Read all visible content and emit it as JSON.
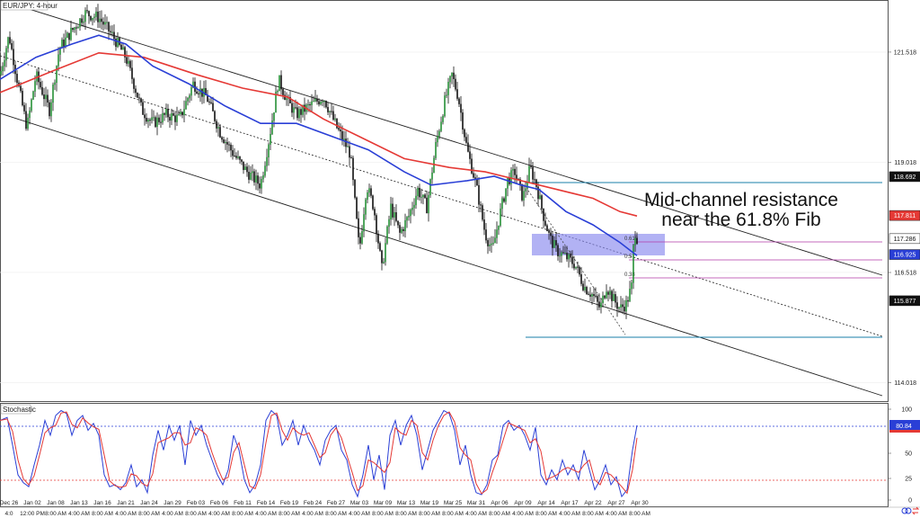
{
  "window": {
    "title": "EUR/JPY: 4-hour"
  },
  "chart_data": [
    {
      "type": "candlestick",
      "title": "EUR/JPY: 4-hour",
      "ylim": [
        113.6,
        122.7
      ],
      "y_ticks": [
        "121.518",
        "119.018",
        "116.518",
        "114.018"
      ],
      "price_tags": [
        {
          "label": "118.692",
          "kind": "level",
          "color": "#111111",
          "text_color": "#ffffff"
        },
        {
          "label": "117.811",
          "kind": "ma_red",
          "color": "#e53935",
          "text_color": "#ffffff"
        },
        {
          "label": "117.286",
          "kind": "last",
          "color": "#ffffff",
          "text_color": "#111111"
        },
        {
          "label": "116.925",
          "kind": "ma_blue",
          "color": "#2a3fd6",
          "text_color": "#ffffff"
        },
        {
          "label": "115.877",
          "kind": "level",
          "color": "#111111",
          "text_color": "#ffffff"
        }
      ],
      "x_labels": [
        "Dec 26",
        "Jan 02",
        "Jan 08",
        "Jan 13",
        "Jan 16",
        "Jan 21",
        "Jan 24",
        "Jan 29",
        "Feb 03",
        "Feb 06",
        "Feb 11",
        "Feb 14",
        "Feb 19",
        "Feb 24",
        "Feb 27",
        "Mar 03",
        "Mar 09",
        "Mar 13",
        "Mar 19",
        "Mar 25",
        "Mar 31",
        "Apr 06",
        "Apr 09",
        "Apr 14",
        "Apr 17",
        "Apr 22",
        "Apr 27",
        "Apr 30"
      ],
      "time_labels": [
        "4:0",
        "12:00 PM",
        "8:00 AM",
        "4:00 AM",
        "8:00 AM",
        "4:00 AM",
        "8:00 AM",
        "4:00 AM",
        "8:00 AM",
        "4:00 AM",
        "8:00 AM",
        "4:00 AM",
        "8:00 AM",
        "4:00 AM",
        "8:00 AM",
        "4:00 AM",
        "8:00 AM",
        "8:00 AM",
        "8:00 AM",
        "8:00 AM",
        "4:00 AM",
        "8:00 AM",
        "4:00 AM",
        "8:00 AM",
        "4:00 AM",
        "8:00 AM",
        "4:00 AM",
        "8:00 AM"
      ],
      "anchors": [
        [
          0,
          121.0
        ],
        [
          10,
          121.9
        ],
        [
          20,
          120.8
        ],
        [
          30,
          119.8
        ],
        [
          40,
          121.0
        ],
        [
          55,
          120.2
        ],
        [
          66,
          121.6
        ],
        [
          80,
          122.0
        ],
        [
          95,
          122.4
        ],
        [
          110,
          122.3
        ],
        [
          125,
          121.9
        ],
        [
          140,
          121.4
        ],
        [
          152,
          120.6
        ],
        [
          158,
          120.2
        ],
        [
          170,
          119.9
        ],
        [
          185,
          120.1
        ],
        [
          200,
          120.0
        ],
        [
          215,
          120.8
        ],
        [
          230,
          120.5
        ],
        [
          245,
          119.7
        ],
        [
          260,
          119.2
        ],
        [
          275,
          118.8
        ],
        [
          290,
          118.5
        ],
        [
          300,
          119.6
        ],
        [
          310,
          120.9
        ],
        [
          320,
          120.4
        ],
        [
          330,
          120.1
        ],
        [
          345,
          120.3
        ],
        [
          360,
          120.5
        ],
        [
          375,
          119.8
        ],
        [
          390,
          119.2
        ],
        [
          400,
          117.0
        ],
        [
          408,
          118.5
        ],
        [
          416,
          118.0
        ],
        [
          425,
          116.6
        ],
        [
          435,
          118.0
        ],
        [
          445,
          117.4
        ],
        [
          455,
          117.8
        ],
        [
          465,
          118.4
        ],
        [
          475,
          118.0
        ],
        [
          485,
          119.4
        ],
        [
          495,
          120.4
        ],
        [
          503,
          121.0
        ],
        [
          510,
          120.5
        ],
        [
          520,
          119.3
        ],
        [
          530,
          118.5
        ],
        [
          540,
          117.4
        ],
        [
          548,
          117.0
        ],
        [
          556,
          117.8
        ],
        [
          565,
          118.6
        ],
        [
          573,
          118.8
        ],
        [
          582,
          118.2
        ],
        [
          590,
          118.9
        ],
        [
          597,
          118.5
        ],
        [
          605,
          117.8
        ],
        [
          612,
          117.3
        ],
        [
          620,
          117.0
        ],
        [
          628,
          116.9
        ],
        [
          640,
          116.7
        ],
        [
          650,
          116.2
        ],
        [
          660,
          116.0
        ],
        [
          668,
          115.7
        ],
        [
          675,
          116.2
        ],
        [
          683,
          115.9
        ],
        [
          690,
          115.7
        ],
        [
          697,
          115.8
        ],
        [
          703,
          116.2
        ],
        [
          706,
          117.5
        ],
        [
          709,
          117.3
        ]
      ],
      "series": [
        {
          "kind": "ma_red",
          "color": "#e53935",
          "values": [
            [
              0,
              120.6
            ],
            [
              60,
              121.1
            ],
            [
              110,
              121.5
            ],
            [
              160,
              121.4
            ],
            [
              220,
              121.0
            ],
            [
              270,
              120.7
            ],
            [
              320,
              120.5
            ],
            [
              360,
              120.0
            ],
            [
              400,
              119.6
            ],
            [
              450,
              119.1
            ],
            [
              500,
              118.9
            ],
            [
              540,
              118.8
            ],
            [
              580,
              118.6
            ],
            [
              620,
              118.4
            ],
            [
              660,
              118.2
            ],
            [
              690,
              117.9
            ],
            [
              709,
              117.8
            ]
          ]
        },
        {
          "kind": "ma_blue",
          "color": "#2a3fd6",
          "values": [
            [
              0,
              120.9
            ],
            [
              40,
              121.4
            ],
            [
              80,
              121.7
            ],
            [
              110,
              121.9
            ],
            [
              140,
              121.7
            ],
            [
              170,
              121.2
            ],
            [
              210,
              120.8
            ],
            [
              250,
              120.3
            ],
            [
              290,
              119.9
            ],
            [
              330,
              119.9
            ],
            [
              370,
              119.6
            ],
            [
              410,
              119.3
            ],
            [
              450,
              118.8
            ],
            [
              480,
              118.5
            ],
            [
              520,
              118.6
            ],
            [
              550,
              118.7
            ],
            [
              580,
              118.5
            ],
            [
              600,
              118.4
            ],
            [
              630,
              117.9
            ],
            [
              660,
              117.6
            ],
            [
              690,
              117.2
            ],
            [
              709,
              116.9
            ]
          ]
        }
      ],
      "stochastic": {
        "label": "Stochastic",
        "y_ticks": [
          "100",
          "50",
          "25",
          "0"
        ],
        "last_value": "80.84",
        "levels": [
          80,
          20
        ],
        "points": [
          [
            0,
            85
          ],
          [
            8,
            88
          ],
          [
            14,
            60
          ],
          [
            20,
            30
          ],
          [
            26,
            22
          ],
          [
            32,
            18
          ],
          [
            38,
            40
          ],
          [
            44,
            60
          ],
          [
            50,
            85
          ],
          [
            56,
            70
          ],
          [
            62,
            90
          ],
          [
            68,
            95
          ],
          [
            74,
            92
          ],
          [
            80,
            70
          ],
          [
            86,
            85
          ],
          [
            92,
            90
          ],
          [
            98,
            75
          ],
          [
            104,
            82
          ],
          [
            110,
            70
          ],
          [
            116,
            30
          ],
          [
            122,
            18
          ],
          [
            128,
            20
          ],
          [
            134,
            15
          ],
          [
            140,
            22
          ],
          [
            146,
            40
          ],
          [
            152,
            18
          ],
          [
            158,
            25
          ],
          [
            164,
            12
          ],
          [
            170,
            50
          ],
          [
            176,
            75
          ],
          [
            182,
            55
          ],
          [
            188,
            80
          ],
          [
            194,
            65
          ],
          [
            200,
            80
          ],
          [
            206,
            40
          ],
          [
            212,
            85
          ],
          [
            218,
            70
          ],
          [
            224,
            80
          ],
          [
            230,
            60
          ],
          [
            236,
            45
          ],
          [
            242,
            30
          ],
          [
            248,
            20
          ],
          [
            254,
            35
          ],
          [
            260,
            70
          ],
          [
            266,
            55
          ],
          [
            272,
            25
          ],
          [
            278,
            12
          ],
          [
            284,
            20
          ],
          [
            290,
            40
          ],
          [
            296,
            85
          ],
          [
            302,
            95
          ],
          [
            308,
            90
          ],
          [
            314,
            60
          ],
          [
            320,
            70
          ],
          [
            326,
            85
          ],
          [
            332,
            60
          ],
          [
            338,
            80
          ],
          [
            344,
            65
          ],
          [
            350,
            55
          ],
          [
            356,
            40
          ],
          [
            362,
            65
          ],
          [
            368,
            75
          ],
          [
            374,
            80
          ],
          [
            380,
            55
          ],
          [
            386,
            45
          ],
          [
            392,
            20
          ],
          [
            398,
            8
          ],
          [
            404,
            30
          ],
          [
            410,
            60
          ],
          [
            416,
            25
          ],
          [
            422,
            50
          ],
          [
            428,
            15
          ],
          [
            434,
            70
          ],
          [
            440,
            85
          ],
          [
            446,
            60
          ],
          [
            452,
            80
          ],
          [
            458,
            90
          ],
          [
            464,
            70
          ],
          [
            470,
            35
          ],
          [
            476,
            55
          ],
          [
            482,
            75
          ],
          [
            488,
            85
          ],
          [
            494,
            95
          ],
          [
            500,
            92
          ],
          [
            506,
            75
          ],
          [
            512,
            40
          ],
          [
            518,
            60
          ],
          [
            524,
            30
          ],
          [
            530,
            12
          ],
          [
            536,
            10
          ],
          [
            542,
            20
          ],
          [
            548,
            45
          ],
          [
            554,
            50
          ],
          [
            560,
            80
          ],
          [
            566,
            85
          ],
          [
            572,
            75
          ],
          [
            578,
            80
          ],
          [
            584,
            70
          ],
          [
            590,
            55
          ],
          [
            596,
            78
          ],
          [
            602,
            30
          ],
          [
            608,
            20
          ],
          [
            614,
            35
          ],
          [
            620,
            25
          ],
          [
            626,
            45
          ],
          [
            632,
            30
          ],
          [
            638,
            40
          ],
          [
            644,
            25
          ],
          [
            650,
            55
          ],
          [
            656,
            35
          ],
          [
            662,
            15
          ],
          [
            668,
            25
          ],
          [
            674,
            40
          ],
          [
            680,
            20
          ],
          [
            686,
            28
          ],
          [
            692,
            8
          ],
          [
            698,
            15
          ],
          [
            704,
            55
          ],
          [
            709,
            80
          ]
        ]
      }
    }
  ],
  "annotation": {
    "line1": "Mid-channel resistance",
    "line2": "near the 61.8% Fib"
  },
  "fib_labels": [
    "0.618",
    "0.5",
    "0.38"
  ],
  "toolbar": {
    "icons": [
      "link-icon",
      "sync-icon"
    ]
  }
}
